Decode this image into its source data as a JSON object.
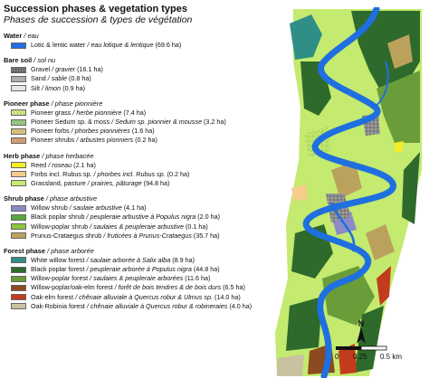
{
  "title": "Succession phases & vegetation types",
  "subtitle": "Phases de succession & types de végétation",
  "groups": [
    {
      "en": "Water",
      "fr": "eau",
      "items": [
        {
          "en": "Lotic & lentic water",
          "fr": "eau lotique & lentique",
          "area": "(69.6 ha)",
          "color": "#1f6fe0",
          "pattern": "solid"
        }
      ]
    },
    {
      "en": "Bare soil",
      "fr": "sol nu",
      "items": [
        {
          "en": "Gravel",
          "fr": "gravier",
          "area": "(16.1 ha)",
          "color": "#7a7a7a",
          "pattern": "gravel"
        },
        {
          "en": "Sand",
          "fr": "sable",
          "area": "(0.8 ha)",
          "color": "#bdbdbd",
          "pattern": "sand"
        },
        {
          "en": "Silt",
          "fr": "limon",
          "area": "(0.9 ha)",
          "color": "#e6e6e6",
          "pattern": "solid"
        }
      ]
    },
    {
      "en": "Pioneer phase",
      "fr": "phase pionnière",
      "items": [
        {
          "en": "Pioneer grass",
          "fr": "herbe pionnière",
          "area": "(7.4 ha)",
          "color": "#d7ee8a",
          "pattern": "grass"
        },
        {
          "en": "Pioneer Sedum sp. & moss",
          "fr": "Sedum sp. pionnier & mousse",
          "area": "(3.2 ha)",
          "color": "#9bd18a",
          "pattern": "grass"
        },
        {
          "en": "Pioneer forbs",
          "fr": "phorbes pionnières",
          "area": "(1.6 ha)",
          "color": "#e7c889",
          "pattern": "grass"
        },
        {
          "en": "Pioneer shrubs",
          "fr": "arbustes pionniers",
          "area": "(0.2 ha)",
          "color": "#e6a07a",
          "pattern": "grass"
        }
      ]
    },
    {
      "en": "Herb phase",
      "fr": "phase herbacée",
      "items": [
        {
          "en": "Reed",
          "fr": "roseau",
          "area": "(2.1 ha)",
          "color": "#f2ee22",
          "pattern": "solid"
        },
        {
          "en": "Forbs incl. Rubus sp.",
          "fr": "phorbes incl. Rubus sp.",
          "area": "(0.2 ha)",
          "color": "#f6cc8c",
          "pattern": "solid"
        },
        {
          "en": "Grassland, pasture",
          "fr": "prairies, pâturage",
          "area": "(94.8 ha)",
          "color": "#c4ea6f",
          "pattern": "solid"
        }
      ]
    },
    {
      "en": "Shrub phase",
      "fr": "phase arbustive",
      "items": [
        {
          "en": "Willow shrub",
          "fr": "saulaie arbustive",
          "area": "(4.1 ha)",
          "color": "#8c8ac8",
          "pattern": "solid"
        },
        {
          "en": "Black poplar shrub",
          "fr": "peupleraie arbustive à Populus nigra",
          "area": "(2.0 ha)",
          "color": "#59a83a",
          "pattern": "solid"
        },
        {
          "en": "Willow-poplar shrub",
          "fr": "saulaies & peupleraie arbustive",
          "area": "(0.1 ha)",
          "color": "#8dc63f",
          "pattern": "solid"
        },
        {
          "en": "Prunus-Crataegus shrub",
          "fr": "fruticées à Prunus-Crataegus",
          "area": "(35.7 ha)",
          "color": "#bba25c",
          "pattern": "solid"
        }
      ]
    },
    {
      "en": "Forest phase",
      "fr": "phase arborée",
      "items": [
        {
          "en": "White willow forest",
          "fr": "saulaie arborée à Salix alba",
          "area": "(8.9 ha)",
          "color": "#2f8f86",
          "pattern": "solid"
        },
        {
          "en": "Black poplar forest",
          "fr": "peupleraie arborée à Populus nigra",
          "area": "(44.8 ha)",
          "color": "#2e6a2b",
          "pattern": "solid"
        },
        {
          "en": "Willow-poplar forest",
          "fr": "saulaies & peupleraie arborées",
          "area": "(11.6 ha)",
          "color": "#6a9d3a",
          "pattern": "solid"
        },
        {
          "en": "Willow-poplar/oak-elm forest",
          "fr": "forêt de bois tendres & de bois durs",
          "area": "(6.5 ha)",
          "color": "#8b4a1f",
          "pattern": "solid"
        },
        {
          "en": "Oak-elm forest",
          "fr": "chênaie alluviale à Quercus robur & Ulmus sp.",
          "area": "(14.0 ha)",
          "color": "#c23b1d",
          "pattern": "solid"
        },
        {
          "en": "Oak-Robinia forest",
          "fr": "chênaie alluviale à Quercus robur & robineraies",
          "area": "(4.0 ha)",
          "color": "#c9c2a0",
          "pattern": "solid"
        }
      ]
    }
  ],
  "map": {
    "north_label": "N",
    "scale_labels": [
      "0",
      "0.25",
      "0.5 km"
    ]
  }
}
